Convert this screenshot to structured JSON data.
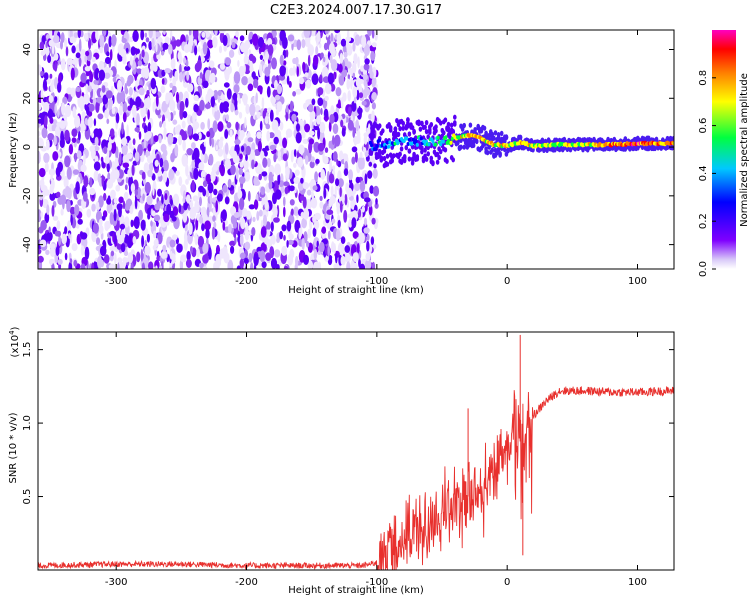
{
  "title": "C2E3.2024.007.17.30.G17",
  "chart_data": [
    {
      "type": "heatmap",
      "xlabel": "Height of straight line (km)",
      "ylabel": "Frequency (Hz)",
      "xlim": [
        -360,
        128
      ],
      "ylim": [
        -50,
        48
      ],
      "x_ticks": [
        -300,
        -200,
        -100,
        0,
        100
      ],
      "y_ticks": [
        -40,
        -20,
        0,
        20,
        40
      ],
      "colorbar": {
        "label": "Normalized spectral amplitude",
        "range": [
          0.0,
          1.0
        ],
        "ticks": [
          "0.0",
          "0.2",
          "0.4",
          "0.6",
          "0.8"
        ],
        "colors": [
          "#ffffff",
          "#c9b1f7",
          "#7f00ff",
          "#0000ff",
          "#00c8ff",
          "#00ff00",
          "#ffff00",
          "#ff8000",
          "#ff0000",
          "#ff00ff"
        ]
      },
      "noise_region": {
        "x_range": [
          -360,
          -100
        ],
        "freq_range": [
          -50,
          48
        ],
        "amplitude": "0.0-0.25"
      },
      "signal_track": {
        "x": [
          -105,
          -90,
          -75,
          -60,
          -45,
          -30,
          -20,
          -10,
          0,
          10,
          20,
          40,
          60,
          80,
          100,
          128
        ],
        "freq": [
          0.5,
          1.5,
          2.5,
          2.0,
          3.0,
          5.0,
          3.5,
          1.0,
          0.5,
          2.0,
          0.5,
          1.0,
          1.0,
          1.0,
          1.5,
          1.5
        ],
        "amplitude": [
          0.4,
          0.45,
          0.45,
          0.5,
          0.6,
          0.8,
          0.8,
          0.75,
          0.7,
          0.75,
          0.7,
          0.7,
          0.75,
          0.85,
          0.9,
          0.85
        ]
      }
    },
    {
      "type": "line",
      "xlabel": "Height of straight line (km)",
      "ylabel": "SNR (10 * v/v)",
      "y_unit": "(x10",
      "y_unit_exp": "4",
      "xlim": [
        -360,
        128
      ],
      "ylim": [
        0.0,
        1.62
      ],
      "x_ticks": [
        -300,
        -200,
        -100,
        0,
        100
      ],
      "y_ticks": [
        {
          "value": 0.5,
          "label": "0.5"
        },
        {
          "value": 1.0,
          "label": "1.0"
        },
        {
          "value": 1.5,
          "label": "1.5"
        }
      ],
      "color": "#e8302d",
      "series": [
        {
          "x": [
            -360,
            -300,
            -250,
            -200,
            -150,
            -110,
            -100,
            -90,
            -80,
            -70,
            -60,
            -50,
            -40,
            -30,
            -20,
            -10,
            0,
            5,
            10,
            15,
            20,
            30,
            40,
            60,
            80,
            100,
            128
          ],
          "y": [
            0.03,
            0.04,
            0.04,
            0.03,
            0.03,
            0.03,
            0.05,
            0.15,
            0.2,
            0.25,
            0.3,
            0.4,
            0.45,
            0.5,
            0.6,
            0.7,
            0.85,
            0.95,
            0.9,
            1.0,
            1.05,
            1.15,
            1.22,
            1.22,
            1.21,
            1.21,
            1.22
          ]
        }
      ],
      "spikes": [
        {
          "x": -30,
          "y": 1.1
        },
        {
          "x": 10,
          "y": 1.6
        },
        {
          "x": 12,
          "y": 0.1
        }
      ]
    }
  ]
}
